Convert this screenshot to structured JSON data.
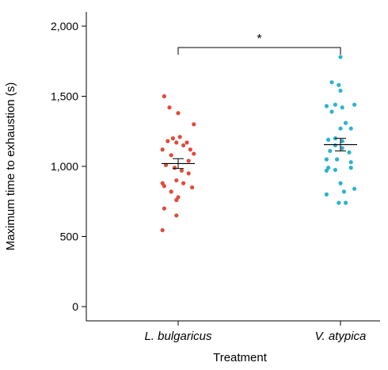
{
  "chart_data": {
    "type": "scatter",
    "xlabel": "Treatment",
    "ylabel": "Maximum time to exhaustion (s)",
    "ylim": [
      0,
      2000
    ],
    "yticks": [
      0,
      500,
      1000,
      1500,
      2000
    ],
    "ytick_labels": [
      "0",
      "500",
      "1,000",
      "1,500",
      "2,000"
    ],
    "categories": [
      "L. bulgaricus",
      "V. atypica"
    ],
    "series": [
      {
        "category": "L. bulgaricus",
        "color": "#E04B3A",
        "mean": 1020,
        "sem": 35,
        "points": [
          {
            "jitter": -0.8,
            "y": 1500
          },
          {
            "jitter": -0.5,
            "y": 1420
          },
          {
            "jitter": 0.0,
            "y": 1380
          },
          {
            "jitter": 0.9,
            "y": 1300
          },
          {
            "jitter": -0.3,
            "y": 1200
          },
          {
            "jitter": 0.1,
            "y": 1210
          },
          {
            "jitter": -0.6,
            "y": 1180
          },
          {
            "jitter": -0.1,
            "y": 1170
          },
          {
            "jitter": 0.5,
            "y": 1170
          },
          {
            "jitter": 0.3,
            "y": 1150
          },
          {
            "jitter": -0.9,
            "y": 1120
          },
          {
            "jitter": 0.7,
            "y": 1120
          },
          {
            "jitter": 0.9,
            "y": 1090
          },
          {
            "jitter": -0.4,
            "y": 1080
          },
          {
            "jitter": 0.6,
            "y": 1040
          },
          {
            "jitter": -0.7,
            "y": 1010
          },
          {
            "jitter": -0.2,
            "y": 990
          },
          {
            "jitter": 0.2,
            "y": 970
          },
          {
            "jitter": 0.6,
            "y": 950
          },
          {
            "jitter": -0.1,
            "y": 900
          },
          {
            "jitter": -0.9,
            "y": 880
          },
          {
            "jitter": 0.3,
            "y": 880
          },
          {
            "jitter": -0.8,
            "y": 860
          },
          {
            "jitter": 0.8,
            "y": 850
          },
          {
            "jitter": -0.4,
            "y": 820
          },
          {
            "jitter": 0.0,
            "y": 780
          },
          {
            "jitter": -0.1,
            "y": 760
          },
          {
            "jitter": -0.8,
            "y": 700
          },
          {
            "jitter": -0.1,
            "y": 650
          },
          {
            "jitter": -0.9,
            "y": 545
          }
        ]
      },
      {
        "category": "V. atypica",
        "color": "#2BB3CF",
        "mean": 1155,
        "sem": 45,
        "points": [
          {
            "jitter": 0.0,
            "y": 1780
          },
          {
            "jitter": -0.5,
            "y": 1600
          },
          {
            "jitter": -0.1,
            "y": 1580
          },
          {
            "jitter": 0.0,
            "y": 1540
          },
          {
            "jitter": -0.3,
            "y": 1440
          },
          {
            "jitter": 0.8,
            "y": 1440
          },
          {
            "jitter": -0.8,
            "y": 1430
          },
          {
            "jitter": 0.1,
            "y": 1420
          },
          {
            "jitter": -0.5,
            "y": 1390
          },
          {
            "jitter": 0.3,
            "y": 1310
          },
          {
            "jitter": 0.0,
            "y": 1270
          },
          {
            "jitter": 0.6,
            "y": 1270
          },
          {
            "jitter": -0.3,
            "y": 1200
          },
          {
            "jitter": -0.7,
            "y": 1190
          },
          {
            "jitter": 0.1,
            "y": 1180
          },
          {
            "jitter": -0.3,
            "y": 1150
          },
          {
            "jitter": 0.1,
            "y": 1130
          },
          {
            "jitter": -0.6,
            "y": 1110
          },
          {
            "jitter": 0.5,
            "y": 1100
          },
          {
            "jitter": -0.8,
            "y": 1050
          },
          {
            "jitter": -0.2,
            "y": 1050
          },
          {
            "jitter": 0.6,
            "y": 1030
          },
          {
            "jitter": -0.7,
            "y": 990
          },
          {
            "jitter": 0.6,
            "y": 990
          },
          {
            "jitter": -0.3,
            "y": 975
          },
          {
            "jitter": -0.8,
            "y": 970
          },
          {
            "jitter": 0.0,
            "y": 880
          },
          {
            "jitter": 0.8,
            "y": 840
          },
          {
            "jitter": 0.2,
            "y": 820
          },
          {
            "jitter": -0.8,
            "y": 800
          },
          {
            "jitter": -0.1,
            "y": 740
          },
          {
            "jitter": 0.3,
            "y": 740
          }
        ]
      }
    ],
    "significance": {
      "between": [
        "L. bulgaricus",
        "V. atypica"
      ],
      "label": "*"
    }
  }
}
